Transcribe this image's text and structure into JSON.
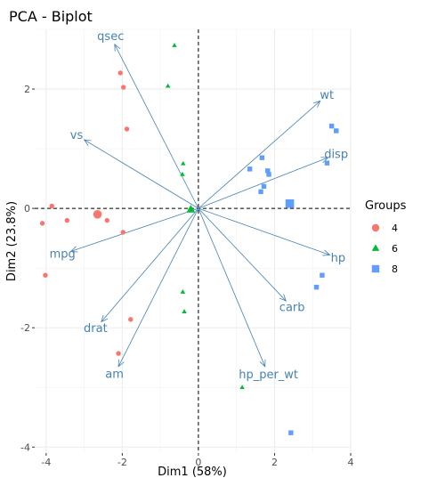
{
  "chart_data": {
    "type": "scatter",
    "title": "PCA - Biplot",
    "xlabel": "Dim1 (58%)",
    "ylabel": "Dim2 (23.8%)",
    "xlim": [
      -4.3,
      4.0
    ],
    "ylim": [
      -4.1,
      3.0
    ],
    "x_ticks": [
      -4,
      -2,
      0,
      2,
      4
    ],
    "y_ticks": [
      -4,
      -2,
      0,
      2
    ],
    "grid": true,
    "legend_title": "Groups",
    "legend_position": "right",
    "groups": [
      {
        "name": "4",
        "color": "#F8766D",
        "shape": "circle",
        "points": [
          [
            -2.05,
            2.27
          ],
          [
            -1.97,
            2.03
          ],
          [
            -1.88,
            1.33
          ],
          [
            -3.85,
            0.04
          ],
          [
            -3.45,
            -0.2
          ],
          [
            -4.1,
            -0.25
          ],
          [
            -2.4,
            -0.2
          ],
          [
            -1.98,
            -0.4
          ],
          [
            -4.02,
            -1.12
          ],
          [
            -1.78,
            -1.86
          ],
          [
            -2.1,
            -2.43
          ]
        ],
        "centroid": [
          -2.65,
          -0.1
        ]
      },
      {
        "name": "6",
        "color": "#00BA38",
        "shape": "triangle",
        "points": [
          [
            -0.63,
            2.73
          ],
          [
            -0.8,
            2.05
          ],
          [
            -0.4,
            0.75
          ],
          [
            -0.42,
            0.57
          ],
          [
            -0.41,
            -1.4
          ],
          [
            -0.37,
            -1.73
          ],
          [
            1.15,
            -3.0
          ]
        ],
        "centroid": [
          -0.2,
          -0.02
        ]
      },
      {
        "name": "8",
        "color": "#619CFF",
        "shape": "square",
        "points": [
          [
            3.5,
            1.38
          ],
          [
            3.62,
            1.3
          ],
          [
            1.67,
            0.85
          ],
          [
            1.35,
            0.66
          ],
          [
            1.82,
            0.63
          ],
          [
            1.85,
            0.57
          ],
          [
            3.38,
            0.76
          ],
          [
            1.72,
            0.37
          ],
          [
            1.64,
            0.28
          ],
          [
            3.25,
            -1.12
          ],
          [
            3.1,
            -1.32
          ],
          [
            2.43,
            -3.76
          ]
        ],
        "centroid": [
          2.4,
          0.08
        ]
      }
    ],
    "variables": [
      {
        "name": "qsec",
        "x": -2.2,
        "y": 2.75
      },
      {
        "name": "vs",
        "x": -3.0,
        "y": 1.15
      },
      {
        "name": "mpg",
        "x": -3.35,
        "y": -0.72
      },
      {
        "name": "drat",
        "x": -2.55,
        "y": -1.9
      },
      {
        "name": "am",
        "x": -2.1,
        "y": -2.65
      },
      {
        "name": "wt",
        "x": 3.2,
        "y": 1.8
      },
      {
        "name": "disp",
        "x": 3.4,
        "y": 0.85
      },
      {
        "name": "hp",
        "x": 3.45,
        "y": -0.78
      },
      {
        "name": "carb",
        "x": 2.3,
        "y": -1.55
      },
      {
        "name": "hp_per_wt",
        "x": 1.75,
        "y": -2.65
      }
    ]
  }
}
